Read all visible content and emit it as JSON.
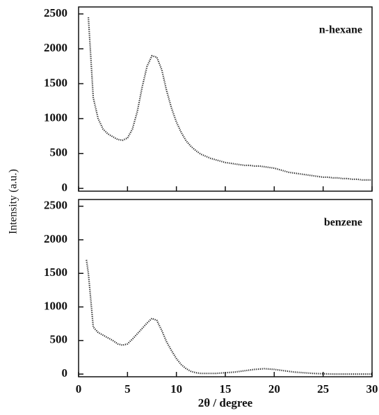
{
  "chart_data": [
    {
      "type": "line",
      "annotation": "n-hexane",
      "y_label": "Intensity (a.u.)",
      "color": "#222",
      "x": [
        1.0,
        1.5,
        2.0,
        2.5,
        3.0,
        3.5,
        4.0,
        4.5,
        5.0,
        5.5,
        6.0,
        6.5,
        7.0,
        7.5,
        8.0,
        8.5,
        9.0,
        9.5,
        10.0,
        10.5,
        11.0,
        11.5,
        12.0,
        12.5,
        13.0,
        13.5,
        14.0,
        14.5,
        15.0,
        15.5,
        16.0,
        16.5,
        17.0,
        17.5,
        18.0,
        18.5,
        19.0,
        19.5,
        20.0,
        20.5,
        21.0,
        21.5,
        22.0,
        22.5,
        23.0,
        23.5,
        24.0,
        24.5,
        25.0,
        25.5,
        26.0,
        26.5,
        27.0,
        27.5,
        28.0,
        28.5,
        29.0,
        29.5,
        30.0
      ],
      "values": [
        2450,
        1300,
        1000,
        850,
        780,
        740,
        700,
        690,
        720,
        850,
        1100,
        1450,
        1750,
        1900,
        1880,
        1700,
        1400,
        1150,
        950,
        800,
        680,
        600,
        540,
        490,
        460,
        430,
        410,
        390,
        370,
        360,
        350,
        340,
        330,
        330,
        320,
        320,
        310,
        300,
        290,
        270,
        250,
        230,
        220,
        210,
        200,
        190,
        180,
        170,
        160,
        160,
        150,
        150,
        140,
        140,
        130,
        130,
        120,
        120,
        120
      ],
      "xlim": [
        0,
        30
      ],
      "xticks": [
        0,
        5,
        10,
        15,
        20,
        25,
        30
      ],
      "ylim": [
        -40,
        2600
      ],
      "yticks": [
        0,
        500,
        1000,
        1500,
        2000,
        2500
      ]
    },
    {
      "type": "line",
      "annotation": "benzene",
      "x_label": "2θ / degree",
      "color": "#222",
      "x": [
        0.8,
        1.0,
        1.5,
        2.0,
        2.5,
        3.0,
        3.5,
        4.0,
        4.5,
        5.0,
        5.5,
        6.0,
        6.5,
        7.0,
        7.5,
        8.0,
        8.5,
        9.0,
        9.5,
        10.0,
        10.5,
        11.0,
        11.5,
        12.0,
        12.5,
        13.0,
        14.0,
        15.0,
        16.0,
        17.0,
        18.0,
        19.0,
        20.0,
        21.0,
        22.0,
        23.0,
        24.0,
        25.0,
        26.0,
        27.0,
        28.0,
        29.0,
        30.0
      ],
      "values": [
        1700,
        1500,
        700,
        620,
        580,
        540,
        500,
        450,
        430,
        450,
        520,
        600,
        680,
        760,
        830,
        800,
        650,
        480,
        350,
        230,
        140,
        80,
        40,
        20,
        10,
        10,
        10,
        20,
        30,
        50,
        70,
        80,
        70,
        50,
        30,
        20,
        10,
        5,
        0,
        0,
        0,
        0,
        0
      ],
      "xlim": [
        0,
        30
      ],
      "xticks": [
        0,
        5,
        10,
        15,
        20,
        25,
        30
      ],
      "ylim": [
        -40,
        2600
      ],
      "yticks": [
        0,
        500,
        1000,
        1500,
        2000,
        2500
      ]
    }
  ]
}
